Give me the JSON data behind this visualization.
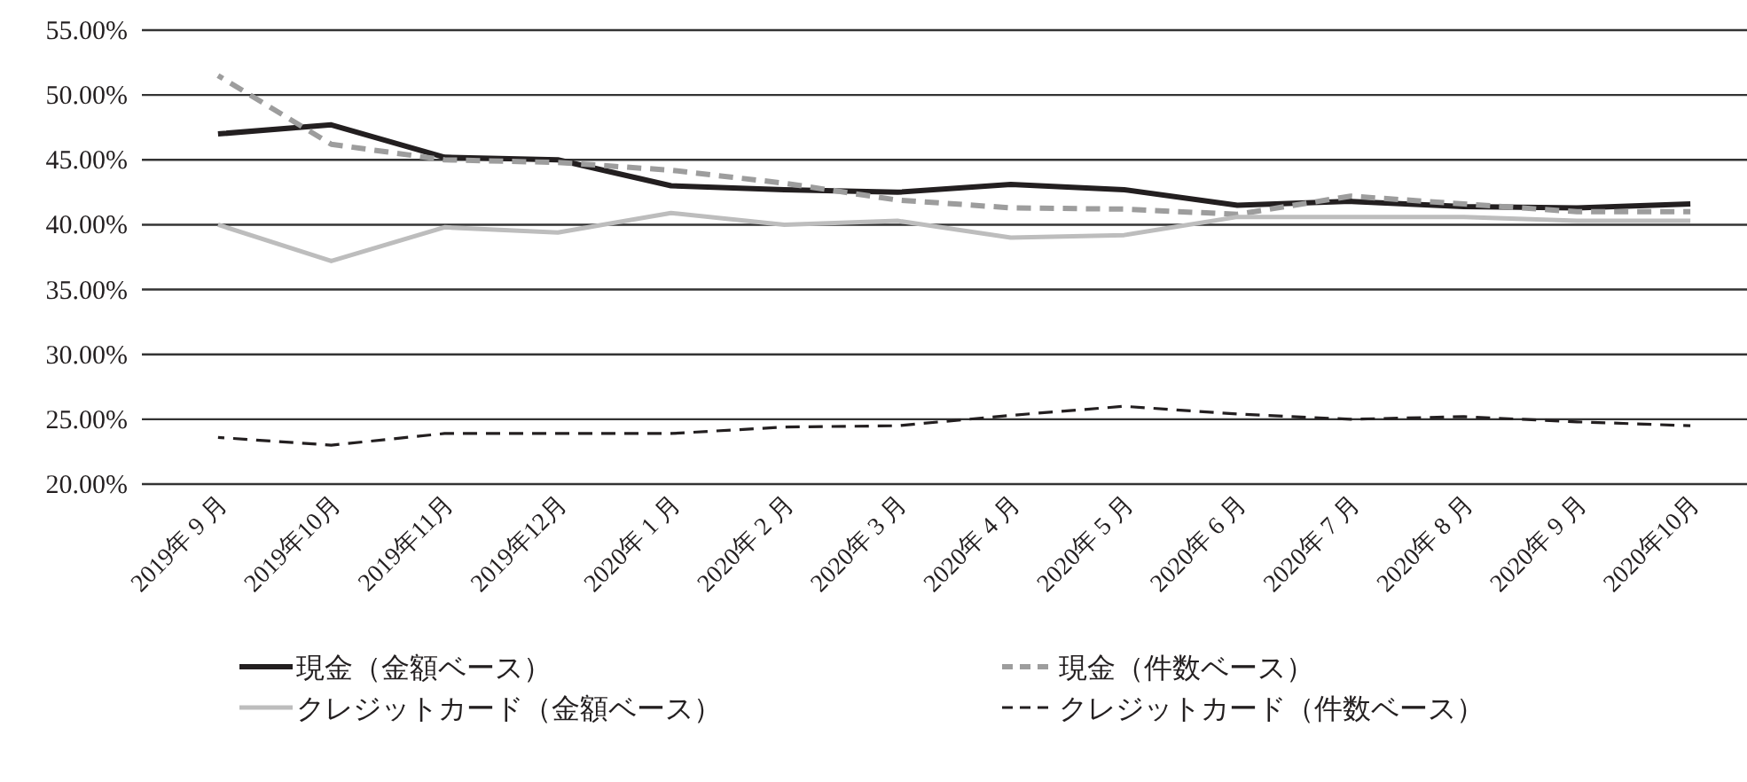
{
  "chart_data": {
    "type": "line",
    "categories": [
      "2019年 9 月",
      "2019年10月",
      "2019年11月",
      "2019年12月",
      "2020年 1 月",
      "2020年 2 月",
      "2020年 3 月",
      "2020年 4 月",
      "2020年 5 月",
      "2020年 6 月",
      "2020年 7 月",
      "2020年 8 月",
      "2020年 9 月",
      "2020年10月"
    ],
    "series": [
      {
        "name": "現金（金額ベース）",
        "color": "#231f20",
        "line_style": "solid",
        "values": [
          47.0,
          47.7,
          45.2,
          45.0,
          43.0,
          42.7,
          42.5,
          43.1,
          42.7,
          41.5,
          41.8,
          41.4,
          41.3,
          41.6
        ]
      },
      {
        "name": "現金（件数ベース）",
        "color": "#9d9d9d",
        "line_style": "dashed",
        "values": [
          51.5,
          46.2,
          45.0,
          44.8,
          44.2,
          43.2,
          41.9,
          41.3,
          41.2,
          40.8,
          42.2,
          41.6,
          41.0,
          41.0
        ]
      },
      {
        "name": "クレジットカード（金額ベース）",
        "color": "#bdbdbd",
        "line_style": "solid",
        "values": [
          40.0,
          37.2,
          39.8,
          39.4,
          40.9,
          40.0,
          40.3,
          39.0,
          39.2,
          40.6,
          40.6,
          40.6,
          40.3,
          40.3
        ]
      },
      {
        "name": "クレジットカード（件数ベース）",
        "color": "#231f20",
        "line_style": "dashed",
        "values": [
          23.6,
          23.0,
          23.9,
          23.9,
          23.9,
          24.4,
          24.5,
          25.3,
          26.0,
          25.4,
          25.0,
          25.2,
          24.8,
          24.5
        ]
      }
    ],
    "ylim": [
      20,
      55
    ],
    "yticks": [
      {
        "value": 20,
        "label": "20.00%"
      },
      {
        "value": 25,
        "label": "25.00%"
      },
      {
        "value": 30,
        "label": "30.00%"
      },
      {
        "value": 35,
        "label": "35.00%"
      },
      {
        "value": 40,
        "label": "40.00%"
      },
      {
        "value": 45,
        "label": "45.00%"
      },
      {
        "value": 50,
        "label": "50.00%"
      },
      {
        "value": 55,
        "label": "55.00%"
      }
    ],
    "grid": "y",
    "legend": "bottom"
  }
}
